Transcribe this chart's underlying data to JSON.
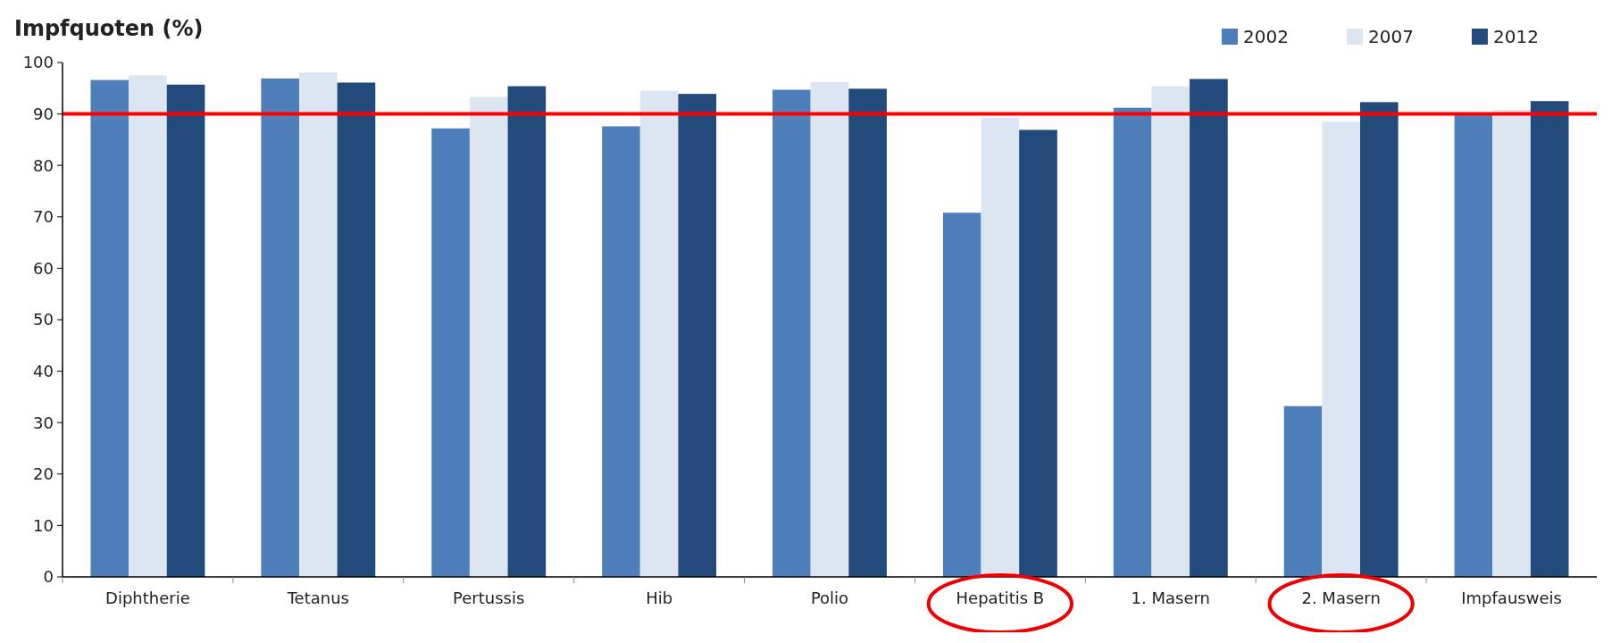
{
  "chart_data": {
    "type": "bar",
    "ylabel": "Impfquoten (%)",
    "categories": [
      "Diphtherie",
      "Tetanus",
      "Pertussis",
      "Hib",
      "Polio",
      "Hepatitis B",
      "1. Masern",
      "2. Masern",
      "Impfausweis"
    ],
    "series": [
      {
        "name": "2002",
        "color": "#4e7fba",
        "values": [
          96.6,
          96.9,
          87.2,
          87.6,
          94.7,
          70.8,
          91.2,
          33.2,
          89.8
        ]
      },
      {
        "name": "2007",
        "color": "#dce6f2",
        "values": [
          97.5,
          98.1,
          93.3,
          94.5,
          96.2,
          89.3,
          95.4,
          88.5,
          90.8
        ]
      },
      {
        "name": "2012",
        "color": "#224a7a",
        "values": [
          95.7,
          96.1,
          95.4,
          93.9,
          94.9,
          86.9,
          96.8,
          92.3,
          92.5
        ]
      }
    ],
    "ylim": [
      0,
      100
    ],
    "yticks": [
      0,
      10,
      20,
      30,
      40,
      50,
      60,
      70,
      80,
      90,
      100
    ],
    "ref_lines": [
      {
        "axis": "y",
        "value": 90,
        "color": "#ff0000"
      }
    ],
    "legend": "top right",
    "grid": false
  }
}
